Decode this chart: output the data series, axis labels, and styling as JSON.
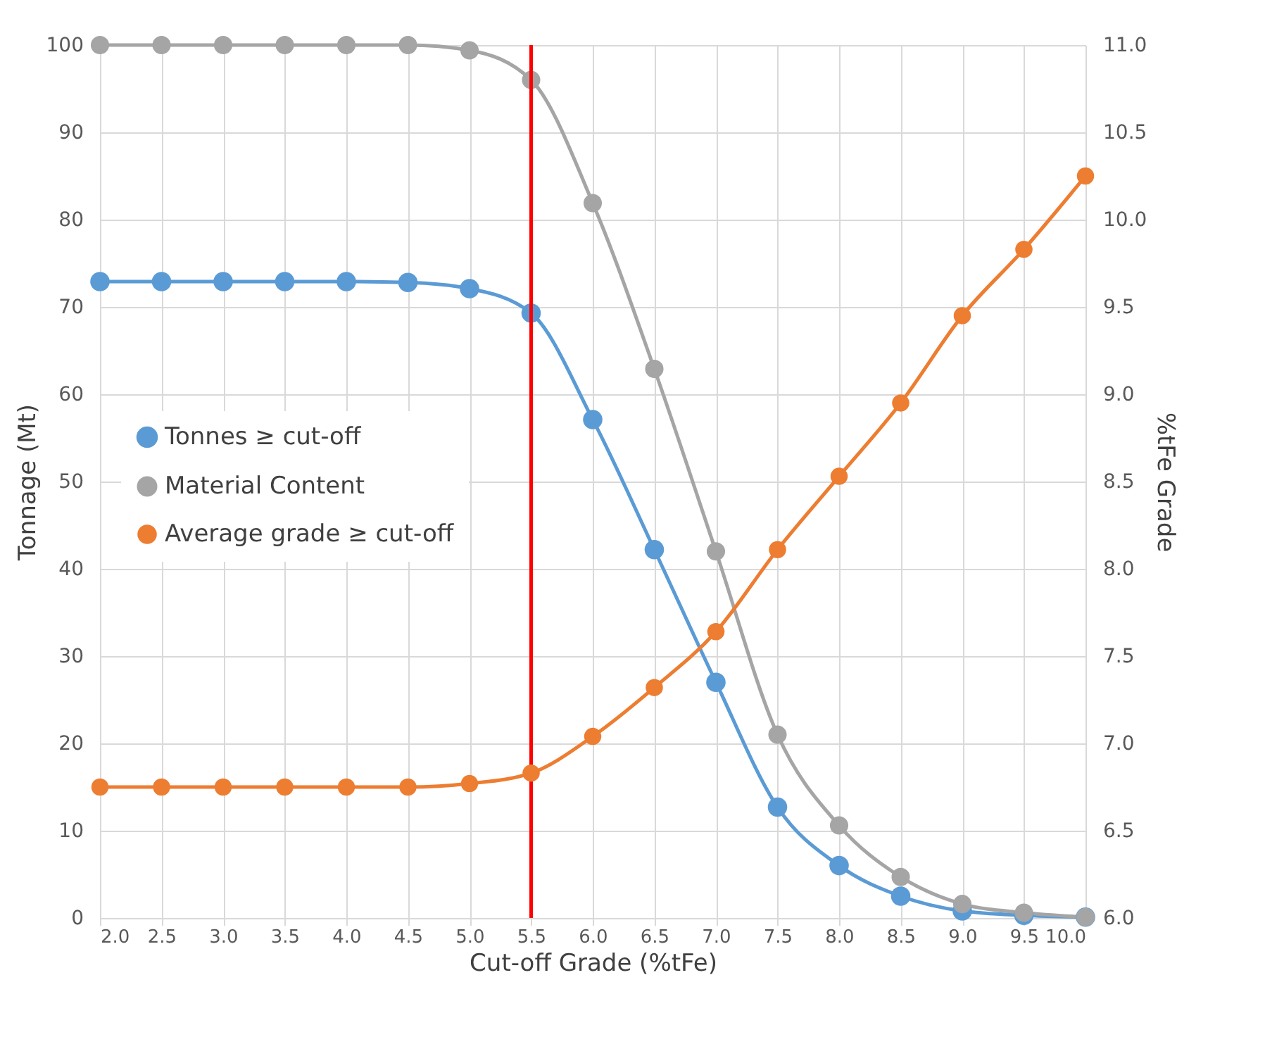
{
  "chart_data": {
    "type": "line",
    "xlabel": "Cut-off Grade (%tFe)",
    "ylabel": "Tonnage (Mt)",
    "y2label": "%tFe Grade",
    "x": [
      2.0,
      2.5,
      3.0,
      3.5,
      4.0,
      4.5,
      5.0,
      5.5,
      6.0,
      6.5,
      7.0,
      7.5,
      8.0,
      8.5,
      9.0,
      9.5,
      10.0
    ],
    "series": [
      {
        "name": "Tonnes ≥ cut-off",
        "color": "#5b9bd5",
        "values": [
          72.9,
          72.9,
          72.9,
          72.9,
          72.9,
          72.8,
          72.1,
          69.3,
          57.1,
          42.2,
          27.0,
          12.7,
          6.0,
          2.5,
          0.8,
          0.3,
          0.1
        ]
      },
      {
        "name": "Material Content",
        "color": "#a5a5a5",
        "values": [
          100,
          100,
          100,
          100,
          100,
          100,
          99.4,
          96.0,
          81.9,
          62.9,
          42.0,
          21.0,
          10.6,
          4.7,
          1.6,
          0.6,
          0.1
        ]
      },
      {
        "name": "Average grade ≥ cut-off",
        "color": "#ed7d31",
        "axis": "y2",
        "values": [
          6.75,
          6.75,
          6.75,
          6.75,
          6.75,
          6.75,
          6.77,
          6.83,
          7.04,
          7.32,
          7.64,
          8.11,
          8.53,
          8.95,
          9.45,
          9.83,
          10.25
        ]
      }
    ],
    "xlim": [
      2.0,
      10.0
    ],
    "xticks": [
      {
        "value": 2,
        "label": "2.0"
      },
      2.5,
      {
        "value": 3,
        "label": "3.0"
      },
      3.5,
      {
        "value": 4,
        "label": "4.0"
      },
      4.5,
      {
        "value": 5,
        "label": "5.0"
      },
      5.5,
      {
        "value": 6,
        "label": "6.0"
      },
      6.5,
      {
        "value": 7,
        "label": "7.0"
      },
      7.5,
      {
        "value": 8,
        "label": "8.0"
      },
      8.5,
      {
        "value": 9,
        "label": "9.0"
      },
      9.5,
      {
        "value": 10,
        "label": "10.0"
      }
    ],
    "ylim": [
      0,
      100
    ],
    "yticks": [
      0,
      10,
      20,
      30,
      40,
      50,
      60,
      70,
      80,
      90,
      100
    ],
    "y2lim": [
      6.0,
      11.0
    ],
    "y2ticks": [
      {
        "value": 6,
        "label": "6.0"
      },
      6.5,
      {
        "value": 7,
        "label": "7.0"
      },
      7.5,
      {
        "value": 8,
        "label": "8.0"
      },
      8.5,
      {
        "value": 9,
        "label": "9.0"
      },
      9.5,
      {
        "value": 10,
        "label": "10.0"
      },
      10.5,
      {
        "value": 11,
        "label": "11.0"
      }
    ],
    "ref_lines": [
      {
        "axis": "x",
        "value": 5.5,
        "color": "#ff0000"
      }
    ],
    "grid": true,
    "legend": "left",
    "marker": "circle",
    "line_style": "solid"
  }
}
